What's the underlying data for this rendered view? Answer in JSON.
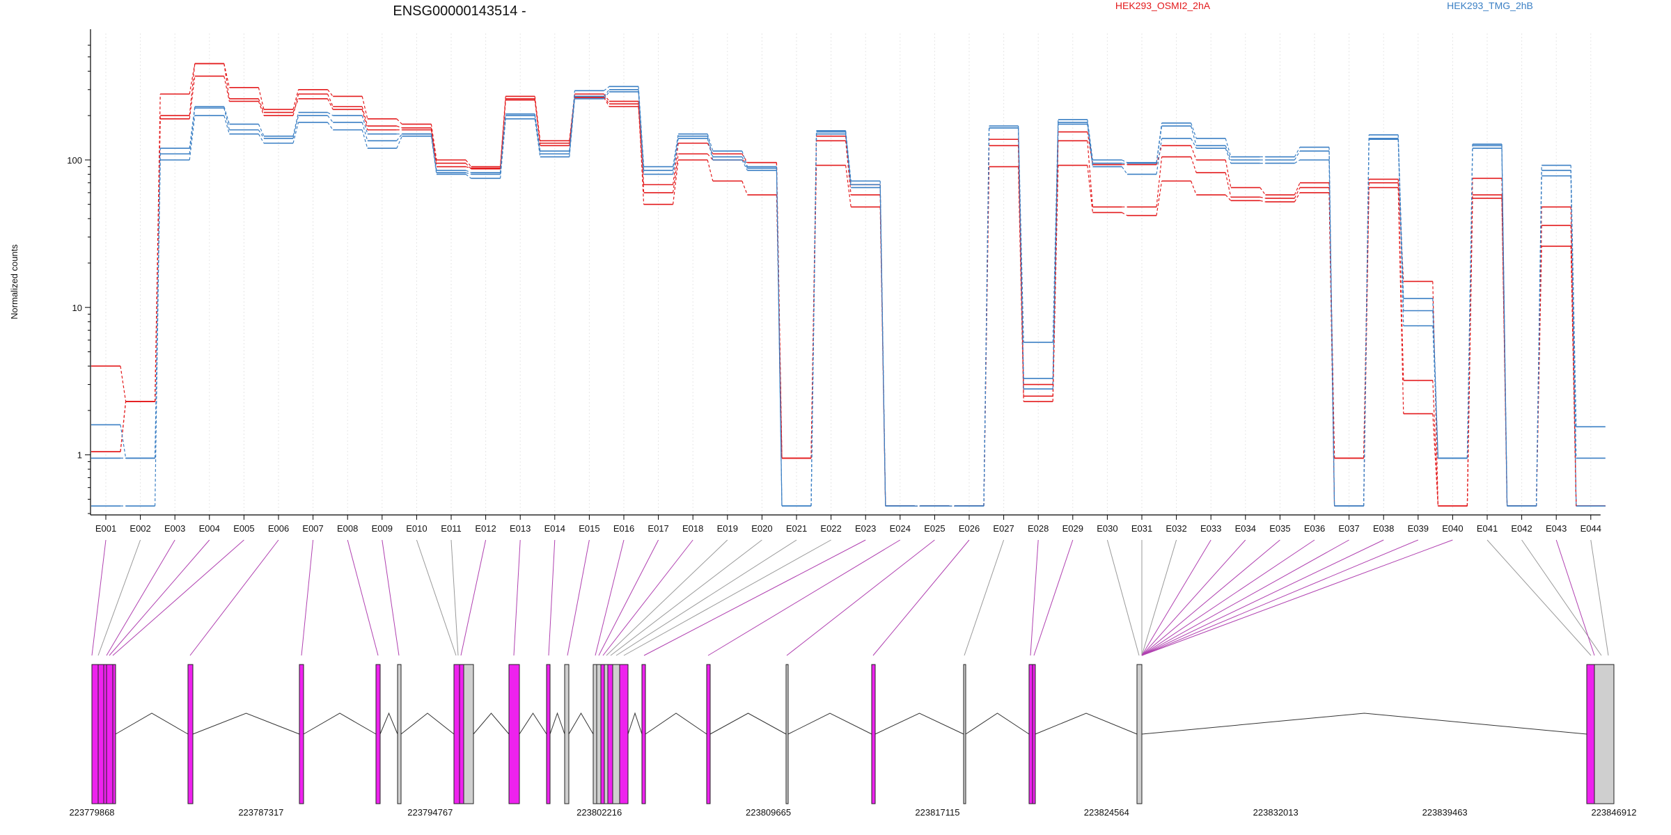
{
  "chart_data": {
    "type": "line",
    "title": "ENSG00000143514 -",
    "ylabel": "Normalized counts",
    "yscale": "log",
    "ylim": [
      0.4,
      600
    ],
    "yticks": [
      {
        "value": 1,
        "label": "1"
      },
      {
        "value": 10,
        "label": "10"
      },
      {
        "value": 100,
        "label": "100"
      }
    ],
    "categories": [
      "E001",
      "E002",
      "E003",
      "E004",
      "E005",
      "E006",
      "E007",
      "E008",
      "E009",
      "E010",
      "E011",
      "E012",
      "E013",
      "E014",
      "E015",
      "E016",
      "E017",
      "E018",
      "E019",
      "E020",
      "E021",
      "E022",
      "E023",
      "E024",
      "E025",
      "E026",
      "E027",
      "E028",
      "E029",
      "E030",
      "E031",
      "E032",
      "E033",
      "E034",
      "E035",
      "E036",
      "E037",
      "E038",
      "E039",
      "E040",
      "E041",
      "E042",
      "E043",
      "E044"
    ],
    "legend": [
      {
        "label": "HEK293_OSMI2_2hA",
        "color": "#e31a1c"
      },
      {
        "label": "HEK293_TMG_2hB",
        "color": "#3a7fc4"
      }
    ],
    "series": [
      {
        "group": 0,
        "color": "#e31a1c",
        "values": [
          4.0,
          2.3,
          280,
          450,
          310,
          220,
          300,
          270,
          190,
          175,
          100,
          90,
          270,
          135,
          280,
          250,
          50,
          100,
          72,
          58,
          0.95,
          92,
          48,
          0.45,
          0.45,
          0.45,
          90,
          2.3,
          92,
          44,
          42,
          72,
          58,
          53,
          52,
          60,
          0.45,
          65,
          1.9,
          0.45,
          55,
          0.45,
          26,
          0.45
        ]
      },
      {
        "group": 0,
        "color": "#e31a1c",
        "values": [
          1.05,
          2.3,
          190,
          370,
          250,
          200,
          280,
          230,
          170,
          165,
          90,
          88,
          260,
          125,
          265,
          230,
          60,
          110,
          100,
          96,
          0.95,
          135,
          58,
          0.45,
          0.45,
          0.45,
          125,
          2.5,
          135,
          48,
          48,
          105,
          82,
          56,
          55,
          65,
          0.95,
          70,
          3.2,
          0.45,
          58,
          0.45,
          36,
          0.45
        ]
      },
      {
        "group": 0,
        "color": "#e31a1c",
        "values": [
          1.05,
          2.3,
          200,
          450,
          260,
          210,
          260,
          220,
          160,
          160,
          95,
          87,
          255,
          130,
          270,
          240,
          68,
          130,
          110,
          96,
          0.95,
          145,
          68,
          0.45,
          0.45,
          0.45,
          138,
          3.0,
          155,
          93,
          93,
          125,
          100,
          65,
          58,
          70,
          0.95,
          74,
          15,
          0.45,
          75,
          0.45,
          48,
          0.45
        ]
      },
      {
        "group": 1,
        "color": "#3a7fc4",
        "values": [
          1.6,
          0.95,
          100,
          200,
          150,
          130,
          180,
          160,
          120,
          145,
          80,
          75,
          190,
          105,
          260,
          290,
          80,
          140,
          100,
          85,
          0.45,
          150,
          65,
          0.45,
          0.45,
          0.45,
          165,
          2.8,
          175,
          90,
          80,
          140,
          120,
          95,
          95,
          100,
          0.45,
          138,
          7.5,
          0.95,
          120,
          0.45,
          78,
          0.95
        ]
      },
      {
        "group": 1,
        "color": "#3a7fc4",
        "values": [
          0.95,
          0.95,
          110,
          225,
          160,
          140,
          200,
          180,
          135,
          150,
          82,
          80,
          200,
          110,
          270,
          300,
          85,
          145,
          105,
          88,
          0.45,
          155,
          68,
          0.45,
          0.45,
          0.45,
          165,
          3.3,
          180,
          95,
          95,
          170,
          125,
          100,
          100,
          115,
          0.45,
          140,
          9.5,
          0.95,
          125,
          0.45,
          85,
          0.45
        ]
      },
      {
        "group": 1,
        "color": "#3a7fc4",
        "values": [
          0.45,
          0.45,
          120,
          230,
          175,
          145,
          210,
          200,
          150,
          150,
          85,
          82,
          205,
          115,
          295,
          315,
          90,
          150,
          115,
          90,
          0.45,
          158,
          72,
          0.45,
          0.45,
          0.45,
          170,
          5.8,
          188,
          100,
          96,
          178,
          140,
          105,
          105,
          122,
          0.45,
          148,
          11.5,
          0.95,
          128,
          0.45,
          92,
          1.55
        ]
      }
    ],
    "coordinates": {
      "ticks": [
        {
          "value": 223779868,
          "label": "223779868"
        },
        {
          "value": 223787317,
          "label": "223787317"
        },
        {
          "value": 223794767,
          "label": "223794767"
        },
        {
          "value": 223802216,
          "label": "223802216"
        },
        {
          "value": 223809665,
          "label": "223809665"
        },
        {
          "value": 223817115,
          "label": "223817115"
        },
        {
          "value": 223824564,
          "label": "223824564"
        },
        {
          "value": 223832013,
          "label": "223832013"
        },
        {
          "value": 223839463,
          "label": "223839463"
        },
        {
          "value": 223846912,
          "label": "223846912"
        }
      ],
      "range": [
        223779868,
        223846912
      ]
    },
    "exon_colors": {
      "significant": "#ee22ee",
      "not_significant": "#cfcfcf"
    }
  }
}
